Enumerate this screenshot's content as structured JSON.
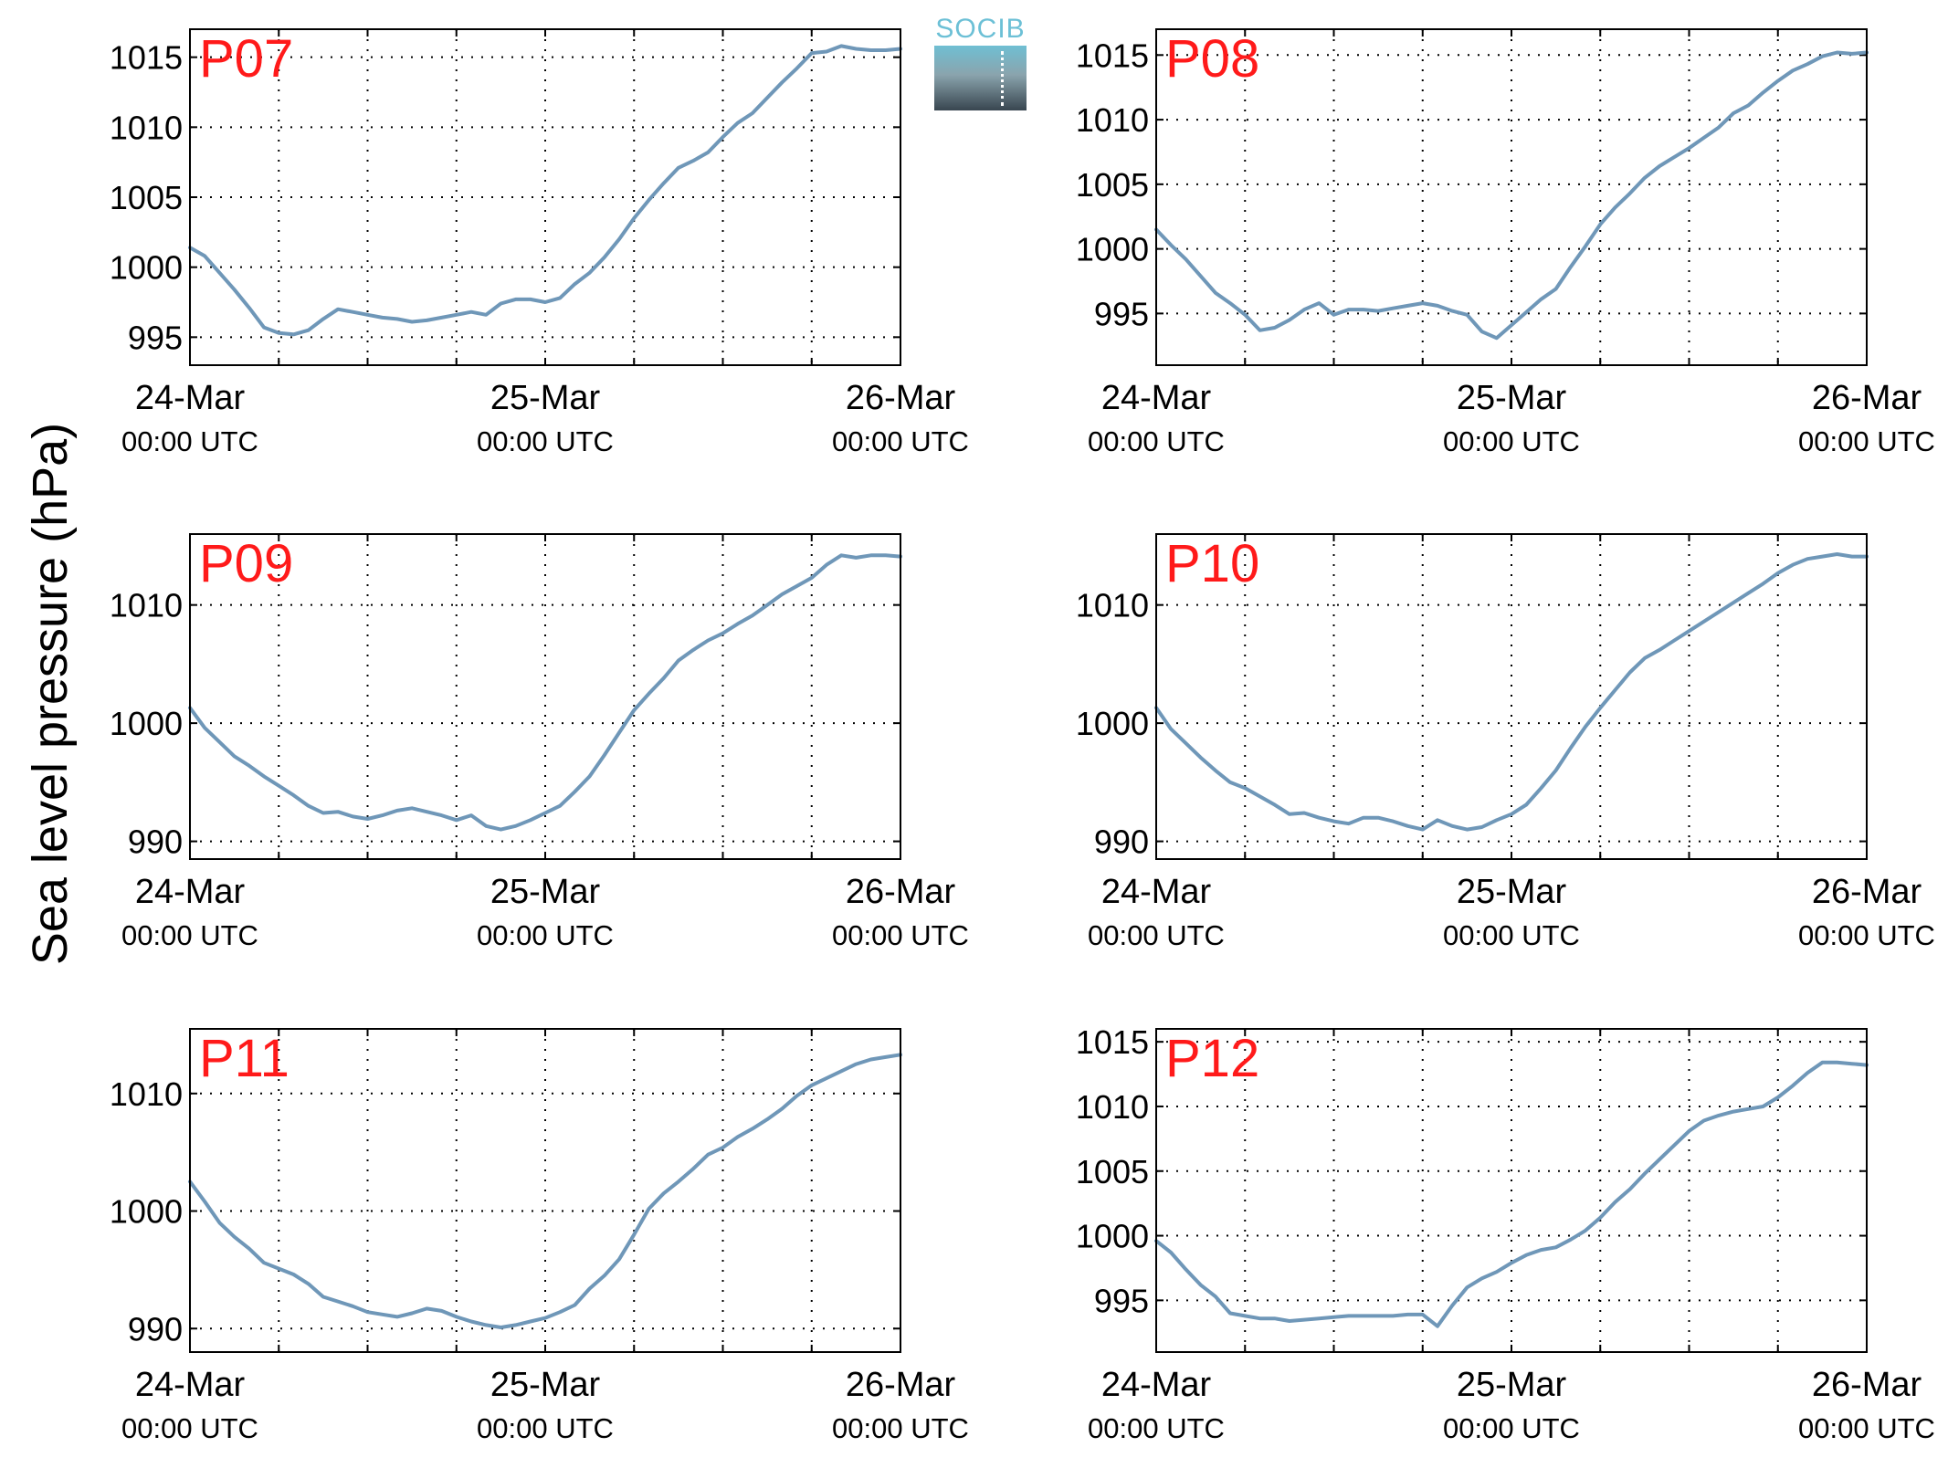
{
  "figure": {
    "ylabel": "Sea level pressure (hPa)",
    "logo_text": "SOCIB",
    "colors": {
      "line": "#6f97b8",
      "panel_title": "#ff1a1a",
      "grid": "#000000"
    }
  },
  "chart_data": [
    {
      "type": "line",
      "title": "P07",
      "x_tick_labels": [
        [
          "24-Mar",
          "00:00 UTC"
        ],
        [
          "25-Mar",
          "00:00 UTC"
        ],
        [
          "26-Mar",
          "00:00 UTC"
        ]
      ],
      "x_ticks_hours": [
        0,
        24,
        48
      ],
      "x_range_hours": [
        0,
        48
      ],
      "ylim": [
        993,
        1017
      ],
      "yticks": [
        995,
        1000,
        1005,
        1010,
        1015
      ],
      "grid": true,
      "series": [
        {
          "x_hours": [
            0,
            1,
            2,
            3,
            4,
            5,
            6,
            7,
            8,
            9,
            10,
            11,
            12,
            13,
            14,
            15,
            16,
            17,
            18,
            19,
            20,
            21,
            22,
            23,
            24,
            25,
            26,
            27,
            28,
            29,
            30,
            31,
            32,
            33,
            34,
            35,
            36,
            37,
            38,
            39,
            40,
            41,
            42,
            43,
            44,
            45,
            46,
            47,
            48
          ],
          "values": [
            1001.4,
            1000.8,
            999.6,
            998.4,
            997.1,
            995.7,
            995.3,
            995.2,
            995.5,
            996.3,
            997.0,
            996.8,
            996.6,
            996.4,
            996.3,
            996.1,
            996.2,
            996.4,
            996.6,
            996.8,
            996.6,
            997.4,
            997.7,
            997.7,
            997.5,
            997.8,
            998.8,
            999.6,
            1000.7,
            1002.0,
            1003.5,
            1004.8,
            1006.0,
            1007.1,
            1007.6,
            1008.2,
            1009.3,
            1010.3,
            1011.0,
            1012.1,
            1013.2,
            1014.2,
            1015.3,
            1015.4,
            1015.8,
            1015.6,
            1015.5,
            1015.5,
            1015.6
          ]
        }
      ]
    },
    {
      "type": "line",
      "title": "P08",
      "x_tick_labels": [
        [
          "24-Mar",
          "00:00 UTC"
        ],
        [
          "25-Mar",
          "00:00 UTC"
        ],
        [
          "26-Mar",
          "00:00 UTC"
        ]
      ],
      "x_ticks_hours": [
        0,
        24,
        48
      ],
      "x_range_hours": [
        0,
        48
      ],
      "ylim": [
        991,
        1017
      ],
      "yticks": [
        995,
        1000,
        1005,
        1010,
        1015
      ],
      "grid": true,
      "series": [
        {
          "x_hours": [
            0,
            1,
            2,
            3,
            4,
            5,
            6,
            7,
            8,
            9,
            10,
            11,
            12,
            13,
            14,
            15,
            16,
            17,
            18,
            19,
            20,
            21,
            22,
            23,
            24,
            25,
            26,
            27,
            28,
            29,
            30,
            31,
            32,
            33,
            34,
            35,
            36,
            37,
            38,
            39,
            40,
            41,
            42,
            43,
            44,
            45,
            46,
            47,
            48
          ],
          "values": [
            1001.5,
            1000.3,
            999.2,
            997.9,
            996.6,
            995.8,
            994.9,
            993.7,
            993.9,
            994.5,
            995.3,
            995.8,
            994.9,
            995.3,
            995.3,
            995.2,
            995.4,
            995.6,
            995.8,
            995.6,
            995.2,
            994.9,
            993.6,
            993.1,
            994.1,
            995.1,
            996.1,
            996.9,
            998.6,
            1000.2,
            1001.9,
            1003.2,
            1004.3,
            1005.5,
            1006.4,
            1007.1,
            1007.8,
            1008.6,
            1009.4,
            1010.5,
            1011.1,
            1012.1,
            1013.0,
            1013.8,
            1014.3,
            1014.9,
            1015.2,
            1015.1,
            1015.2
          ]
        }
      ]
    },
    {
      "type": "line",
      "title": "P09",
      "x_tick_labels": [
        [
          "24-Mar",
          "00:00 UTC"
        ],
        [
          "25-Mar",
          "00:00 UTC"
        ],
        [
          "26-Mar",
          "00:00 UTC"
        ]
      ],
      "x_ticks_hours": [
        0,
        24,
        48
      ],
      "x_range_hours": [
        0,
        48
      ],
      "ylim": [
        988.5,
        1016
      ],
      "yticks": [
        990,
        1000,
        1010
      ],
      "grid": true,
      "series": [
        {
          "x_hours": [
            0,
            1,
            2,
            3,
            4,
            5,
            6,
            7,
            8,
            9,
            10,
            11,
            12,
            13,
            14,
            15,
            16,
            17,
            18,
            19,
            20,
            21,
            22,
            23,
            24,
            25,
            26,
            27,
            28,
            29,
            30,
            31,
            32,
            33,
            34,
            35,
            36,
            37,
            38,
            39,
            40,
            41,
            42,
            43,
            44,
            45,
            46,
            47,
            48
          ],
          "values": [
            1001.3,
            999.6,
            998.4,
            997.2,
            996.4,
            995.5,
            994.7,
            993.9,
            993.0,
            992.4,
            992.5,
            992.1,
            991.9,
            992.2,
            992.6,
            992.8,
            992.5,
            992.2,
            991.8,
            992.2,
            991.3,
            991.0,
            991.3,
            991.8,
            992.4,
            993.0,
            994.2,
            995.5,
            997.3,
            999.2,
            1001.1,
            1002.5,
            1003.8,
            1005.3,
            1006.2,
            1007.0,
            1007.6,
            1008.4,
            1009.1,
            1010.0,
            1010.9,
            1011.6,
            1012.3,
            1013.4,
            1014.2,
            1014.0,
            1014.2,
            1014.2,
            1014.1
          ]
        }
      ]
    },
    {
      "type": "line",
      "title": "P10",
      "x_tick_labels": [
        [
          "24-Mar",
          "00:00 UTC"
        ],
        [
          "25-Mar",
          "00:00 UTC"
        ],
        [
          "26-Mar",
          "00:00 UTC"
        ]
      ],
      "x_ticks_hours": [
        0,
        24,
        48
      ],
      "x_range_hours": [
        0,
        48
      ],
      "ylim": [
        988.5,
        1016
      ],
      "yticks": [
        990,
        1000,
        1010
      ],
      "grid": true,
      "series": [
        {
          "x_hours": [
            0,
            1,
            2,
            3,
            4,
            5,
            6,
            7,
            8,
            9,
            10,
            11,
            12,
            13,
            14,
            15,
            16,
            17,
            18,
            19,
            20,
            21,
            22,
            23,
            24,
            25,
            26,
            27,
            28,
            29,
            30,
            31,
            32,
            33,
            34,
            35,
            36,
            37,
            38,
            39,
            40,
            41,
            42,
            43,
            44,
            45,
            46,
            47,
            48
          ],
          "values": [
            1001.3,
            999.5,
            998.3,
            997.1,
            996.0,
            995.0,
            994.5,
            993.8,
            993.1,
            992.3,
            992.4,
            992.0,
            991.7,
            991.5,
            992.0,
            992.0,
            991.7,
            991.3,
            991.0,
            991.8,
            991.3,
            991.0,
            991.2,
            991.8,
            992.3,
            993.1,
            994.5,
            996.0,
            997.9,
            999.7,
            1001.3,
            1002.8,
            1004.3,
            1005.5,
            1006.2,
            1007.0,
            1007.8,
            1008.6,
            1009.4,
            1010.2,
            1011.0,
            1011.8,
            1012.7,
            1013.4,
            1013.9,
            1014.1,
            1014.3,
            1014.1,
            1014.1
          ]
        }
      ]
    },
    {
      "type": "line",
      "title": "P11",
      "x_tick_labels": [
        [
          "24-Mar",
          "00:00 UTC"
        ],
        [
          "25-Mar",
          "00:00 UTC"
        ],
        [
          "26-Mar",
          "00:00 UTC"
        ]
      ],
      "x_ticks_hours": [
        0,
        24,
        48
      ],
      "x_range_hours": [
        0,
        48
      ],
      "ylim": [
        988,
        1015.5
      ],
      "yticks": [
        990,
        1000,
        1010
      ],
      "grid": true,
      "series": [
        {
          "x_hours": [
            0,
            1,
            2,
            3,
            4,
            5,
            6,
            7,
            8,
            9,
            10,
            11,
            12,
            13,
            14,
            15,
            16,
            17,
            18,
            19,
            20,
            21,
            22,
            23,
            24,
            25,
            26,
            27,
            28,
            29,
            30,
            31,
            32,
            33,
            34,
            35,
            36,
            37,
            38,
            39,
            40,
            41,
            42,
            43,
            44,
            45,
            46,
            47,
            48
          ],
          "values": [
            1002.5,
            1000.8,
            999.0,
            997.8,
            996.8,
            995.6,
            995.1,
            994.6,
            993.8,
            992.7,
            992.3,
            991.9,
            991.4,
            991.2,
            991.0,
            991.3,
            991.7,
            991.5,
            991.0,
            990.6,
            990.3,
            990.1,
            990.3,
            990.6,
            990.9,
            991.4,
            992.0,
            993.4,
            994.5,
            995.9,
            998.0,
            1000.2,
            1001.5,
            1002.5,
            1003.6,
            1004.8,
            1005.4,
            1006.3,
            1007.0,
            1007.8,
            1008.7,
            1009.8,
            1010.7,
            1011.3,
            1011.9,
            1012.5,
            1012.9,
            1013.1,
            1013.3
          ]
        }
      ]
    },
    {
      "type": "line",
      "title": "P12",
      "x_tick_labels": [
        [
          "24-Mar",
          "00:00 UTC"
        ],
        [
          "25-Mar",
          "00:00 UTC"
        ],
        [
          "26-Mar",
          "00:00 UTC"
        ]
      ],
      "x_ticks_hours": [
        0,
        24,
        48
      ],
      "x_range_hours": [
        0,
        48
      ],
      "ylim": [
        991,
        1016
      ],
      "yticks": [
        995,
        1000,
        1005,
        1010,
        1015
      ],
      "grid": true,
      "series": [
        {
          "x_hours": [
            0,
            1,
            2,
            3,
            4,
            5,
            6,
            7,
            8,
            9,
            10,
            11,
            12,
            13,
            14,
            15,
            16,
            17,
            18,
            19,
            20,
            21,
            22,
            23,
            24,
            25,
            26,
            27,
            28,
            29,
            30,
            31,
            32,
            33,
            34,
            35,
            36,
            37,
            38,
            39,
            40,
            41,
            42,
            43,
            44,
            45,
            46,
            47,
            48
          ],
          "values": [
            999.6,
            998.7,
            997.4,
            996.2,
            995.3,
            994.0,
            993.8,
            993.6,
            993.6,
            993.4,
            993.5,
            993.6,
            993.7,
            993.8,
            993.8,
            993.8,
            993.8,
            993.9,
            993.9,
            993.0,
            994.6,
            996.0,
            996.7,
            997.2,
            997.9,
            998.5,
            998.9,
            999.1,
            999.7,
            1000.4,
            1001.4,
            1002.6,
            1003.6,
            1004.8,
            1005.9,
            1007.0,
            1008.1,
            1008.9,
            1009.3,
            1009.6,
            1009.8,
            1010.0,
            1010.7,
            1011.6,
            1012.6,
            1013.4,
            1013.4,
            1013.3,
            1013.2
          ]
        }
      ]
    }
  ]
}
